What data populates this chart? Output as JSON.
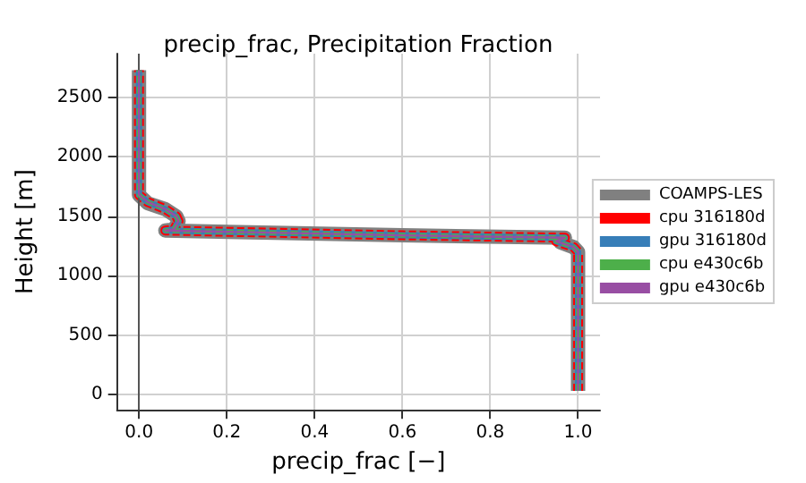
{
  "chart_data": {
    "type": "line",
    "title": "precip_frac, Precipitation Fraction",
    "xlabel": "precip_frac [−]",
    "ylabel": "Height [m]",
    "xlim": [
      -0.05,
      1.05
    ],
    "xticks": [
      {
        "value": 0,
        "label": "0.0"
      },
      {
        "value": 0.2,
        "label": "0.2"
      },
      {
        "value": 0.4,
        "label": "0.4"
      },
      {
        "value": 0.6,
        "label": "0.6"
      },
      {
        "value": 0.8,
        "label": "0.8"
      },
      {
        "value": 1,
        "label": "1.0"
      }
    ],
    "ylim": [
      -130,
      2870
    ],
    "yticks": [
      0,
      500,
      1000,
      1500,
      2000,
      2500
    ],
    "grid": true,
    "legend": "right",
    "marker": "none",
    "ref_lines": [
      {
        "axis": "x",
        "value": 0,
        "color": "#555555"
      }
    ],
    "series": [
      {
        "name": "COAMPS-LES",
        "color": "#808080",
        "line_style": "solid",
        "x": [
          1,
          1,
          0.99,
          0.96,
          0.97,
          0.6,
          0.06,
          0.08,
          0.09,
          0.085,
          0.06,
          0.02,
          0,
          0
        ],
        "values": [
          30,
          1200,
          1240,
          1280,
          1320,
          1340,
          1380,
          1390,
          1460,
          1500,
          1560,
          1610,
          1680,
          2730
        ]
      },
      {
        "name": "cpu 316180d",
        "color": "#ff0000",
        "line_style": "dashed",
        "x": [
          1,
          1,
          0.99,
          0.95,
          0.97,
          0.6,
          0.06,
          0.08,
          0.09,
          0.085,
          0.06,
          0.02,
          0,
          0
        ],
        "values": [
          30,
          1200,
          1240,
          1290,
          1320,
          1340,
          1380,
          1390,
          1460,
          1500,
          1560,
          1620,
          1680,
          2730
        ]
      },
      {
        "name": "gpu 316180d",
        "color": "#377eb8",
        "line_style": "solid",
        "x": [
          1,
          1,
          0.99,
          0.95,
          0.97,
          0.6,
          0.06,
          0.08,
          0.09,
          0.085,
          0.06,
          0.02,
          0,
          0
        ],
        "values": [
          30,
          1200,
          1240,
          1290,
          1320,
          1340,
          1380,
          1390,
          1460,
          1500,
          1560,
          1620,
          1680,
          2730
        ]
      },
      {
        "name": "cpu e430c6b",
        "color": "#4daf4a",
        "line_style": "dashed",
        "x": [
          1,
          1,
          0.99,
          0.95,
          0.97,
          0.6,
          0.06,
          0.08,
          0.09,
          0.085,
          0.06,
          0.02,
          0,
          0
        ],
        "values": [
          30,
          1200,
          1240,
          1290,
          1320,
          1340,
          1380,
          1390,
          1460,
          1500,
          1560,
          1620,
          1680,
          2730
        ]
      },
      {
        "name": "gpu e430c6b",
        "color": "#984ea3",
        "line_style": "solid",
        "x": [
          1,
          1,
          0.99,
          0.95,
          0.97,
          0.6,
          0.06,
          0.08,
          0.09,
          0.085,
          0.06,
          0.02,
          0,
          0
        ],
        "values": [
          30,
          1200,
          1240,
          1290,
          1320,
          1340,
          1380,
          1390,
          1460,
          1500,
          1560,
          1620,
          1680,
          2730
        ]
      }
    ]
  }
}
